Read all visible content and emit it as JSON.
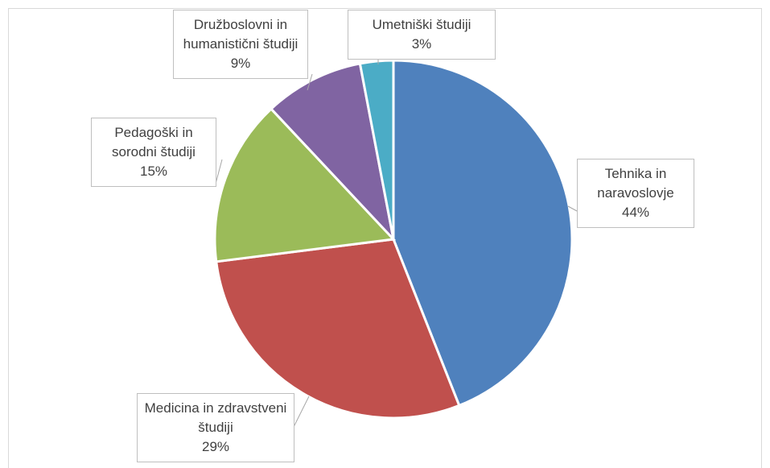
{
  "chart_data": {
    "type": "pie",
    "categories": [
      "Tehnika in naravoslovje",
      "Medicina in zdravstveni študiji",
      "Pedagoški in sorodni študiji",
      "Družboslovni in humanistični študiji",
      "Umetniški študiji"
    ],
    "values": [
      44,
      29,
      15,
      9,
      3
    ],
    "value_labels": [
      "44%",
      "29%",
      "15%",
      "9%",
      "3%"
    ],
    "colors": [
      "#4f81bd",
      "#c0504d",
      "#9bbb59",
      "#8064a2",
      "#4bacc6"
    ]
  }
}
